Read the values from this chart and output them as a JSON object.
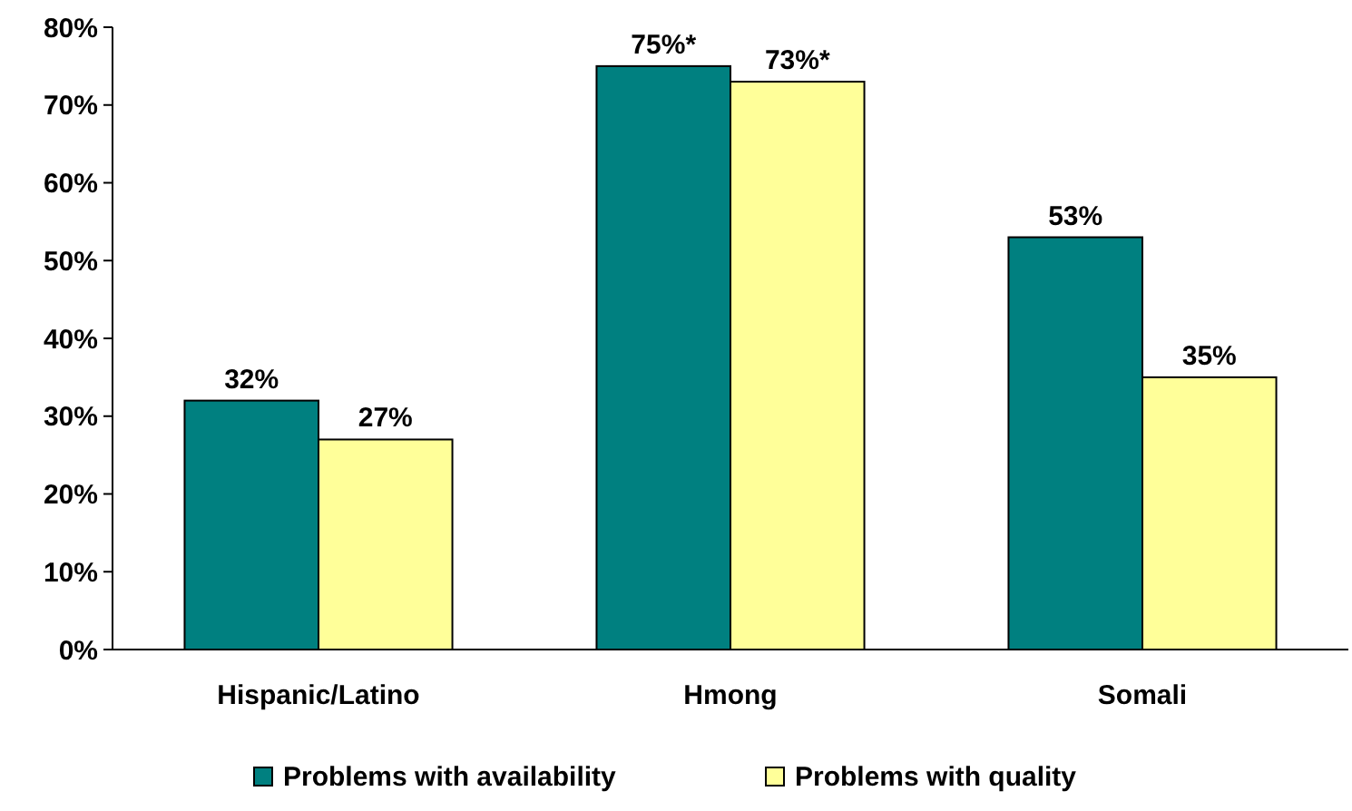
{
  "chart_data": {
    "type": "bar",
    "categories": [
      "Hispanic/Latino",
      "Hmong",
      "Somali"
    ],
    "series": [
      {
        "name": "Problems with availability",
        "color": "#008080",
        "values": [
          32,
          75,
          53
        ],
        "value_labels": [
          "32%",
          "75%*",
          "53%"
        ]
      },
      {
        "name": "Problems with quality",
        "color": "#ffff99",
        "values": [
          27,
          73,
          35
        ],
        "value_labels": [
          "27%",
          "73%*",
          "35%"
        ]
      }
    ],
    "ylim": [
      0,
      80
    ],
    "yticks": [
      {
        "value": 0,
        "label": "0%"
      },
      {
        "value": 10,
        "label": "10%"
      },
      {
        "value": 20,
        "label": "20%"
      },
      {
        "value": 30,
        "label": "30%"
      },
      {
        "value": 40,
        "label": "40%"
      },
      {
        "value": 50,
        "label": "50%"
      },
      {
        "value": 60,
        "label": "60%"
      },
      {
        "value": 70,
        "label": "70%"
      },
      {
        "value": 80,
        "label": "80%"
      }
    ],
    "grid": false,
    "legend": "bottom"
  }
}
